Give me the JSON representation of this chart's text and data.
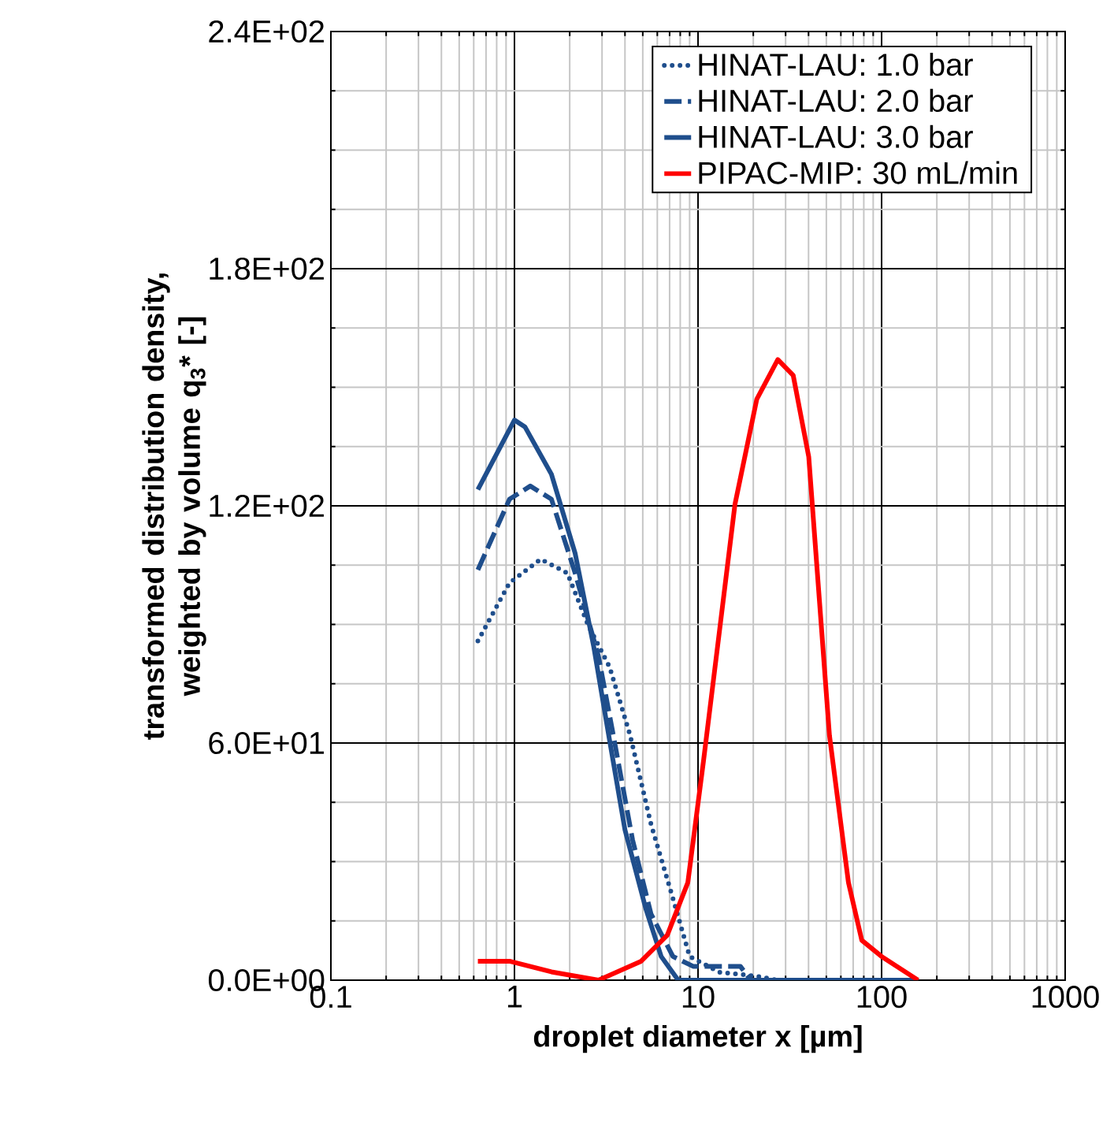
{
  "chart_data": {
    "type": "line",
    "xlabel": "droplet diameter x [µm]",
    "ylabel": "transformed distribution density, weighted by volume q$_{3}$* [-]",
    "log": "x",
    "xlim": [
      0.1,
      1000
    ],
    "xticks": [
      0.1,
      1,
      10,
      100,
      1000
    ],
    "ylim": [
      0,
      240
    ],
    "yticks": [
      {
        "value": 0,
        "label": "0.0E+00"
      },
      {
        "value": 60,
        "label": "6.0E+01"
      },
      {
        "value": 120,
        "label": "1.2E+02"
      },
      {
        "value": 180,
        "label": "1.8E+02"
      },
      {
        "value": 240,
        "label": "2.4E+02"
      }
    ],
    "grid": true,
    "legend": "top right",
    "marker": "none",
    "series": [
      {
        "name": "HINAT-LAU: 1.0 bar",
        "color": "#1f4e8c",
        "line_style": "dotted",
        "x": [
          0.632,
          0.94,
          1.39,
          1.94,
          2.52,
          3.3,
          4.27,
          5.55,
          7.3,
          9.0,
          13.1,
          21,
          27,
          100,
          158
        ],
        "values": [
          85.8,
          100.5,
          106.5,
          103,
          89.8,
          79.2,
          61.9,
          39.4,
          20.7,
          6,
          2,
          1,
          0,
          0,
          0
        ]
      },
      {
        "name": "HINAT-LAU: 2.0 bar",
        "color": "#1f4e8c",
        "line_style": "dashed",
        "x": [
          0.632,
          0.94,
          1.22,
          1.59,
          2.14,
          2.87,
          3.5,
          4.4,
          5.55,
          7.3,
          9.4,
          17,
          19.4,
          100,
          158
        ],
        "values": [
          103.8,
          121.7,
          125,
          121.7,
          103,
          81.9,
          60.6,
          35.5,
          16.7,
          6,
          3.5,
          3.5,
          0,
          0,
          0
        ]
      },
      {
        "name": "HINAT-LAU: 3.0 bar",
        "color": "#1f4e8c",
        "line_style": "solid",
        "x": [
          0.632,
          1.0,
          1.14,
          1.59,
          2.14,
          2.7,
          3.3,
          4.0,
          5.2,
          6.3,
          7.8,
          10,
          100,
          158
        ],
        "values": [
          124.1,
          141.7,
          140,
          128,
          108,
          84.5,
          60.6,
          38,
          18,
          6,
          0,
          0,
          0,
          0
        ]
      },
      {
        "name": "PIPAC-MIP: 30 mL/min",
        "color": "#ff0000",
        "line_style": "solid",
        "x": [
          0.632,
          0.94,
          1.59,
          2.87,
          4.9,
          6.8,
          8.8,
          10.7,
          13.1,
          15.9,
          20.9,
          27.2,
          33,
          40.1,
          52,
          66,
          78,
          100,
          158
        ],
        "values": [
          4.8,
          4.8,
          2.1,
          0,
          4.8,
          11.4,
          24.7,
          55.3,
          88.5,
          120.4,
          147,
          157,
          153,
          132.4,
          61.9,
          24.7,
          10.1,
          6,
          0
        ]
      }
    ]
  }
}
